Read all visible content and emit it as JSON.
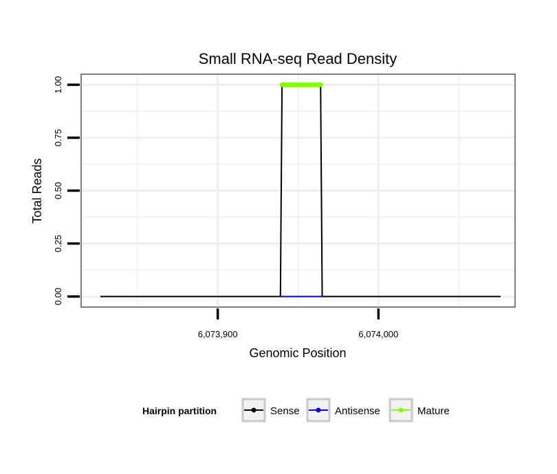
{
  "chart_data": {
    "type": "line",
    "title": "Small RNA-seq Read Density",
    "xlabel": "Genomic Position",
    "ylabel": "Total Reads",
    "xlim": [
      6073815,
      6074085
    ],
    "ylim": [
      -0.05,
      1.05
    ],
    "x_ticks": [
      6073900,
      6074000
    ],
    "x_tick_labels": [
      "6,073,900",
      "6,074,000"
    ],
    "y_ticks": [
      0,
      0.25,
      0.5,
      0.75,
      1.0
    ],
    "y_tick_labels": [
      "0.00",
      "0.25",
      "0.50",
      "0.75",
      "1.00"
    ],
    "grid": true,
    "legend_position": "bottom",
    "legend_title": "Hairpin partition",
    "series": [
      {
        "name": "Sense",
        "color": "#000000",
        "x": [
          6073827,
          6073939,
          6073940,
          6073964,
          6073965,
          6074076
        ],
        "y": [
          0,
          0,
          1,
          1,
          0,
          0
        ],
        "marker": false
      },
      {
        "name": "Antisense",
        "color": "#0000ff",
        "x": [
          6073939,
          6073965
        ],
        "y": [
          0,
          0
        ],
        "marker": false
      },
      {
        "name": "Mature",
        "color": "#7fff00",
        "x": [
          6073940,
          6073964
        ],
        "y": [
          1,
          1
        ],
        "marker": true
      }
    ]
  }
}
